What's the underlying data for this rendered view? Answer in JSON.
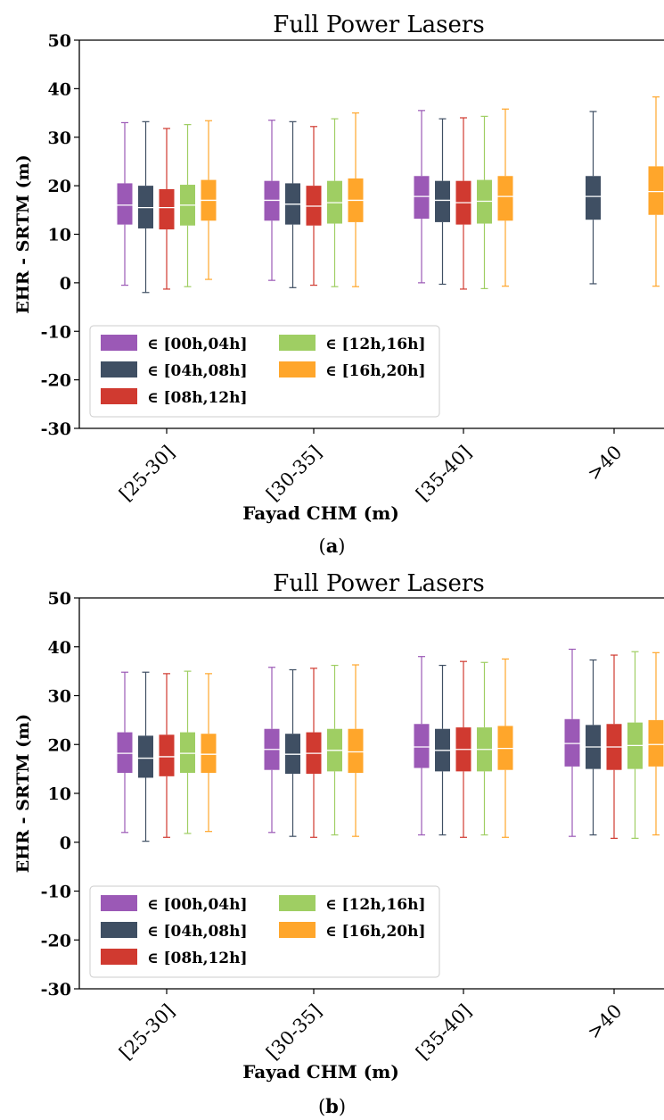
{
  "chart_data": [
    {
      "type": "boxplot",
      "panel": "a",
      "title": "Full Power Lasers",
      "xlabel": "Fayad CHM (m)",
      "ylabel": "EHR - SRTM (m)",
      "ylim": [
        -30,
        50
      ],
      "yticks": [
        -30,
        -20,
        -10,
        0,
        10,
        20,
        30,
        40,
        50
      ],
      "categories": [
        "[25-30]",
        "[30-35]",
        "[35-40]",
        ">40"
      ],
      "legend_position": "lower-left",
      "series": [
        {
          "name": "∈ [00h,04h]",
          "color": "#9b59b6",
          "boxes": [
            {
              "whislo": -0.5,
              "q1": 12,
              "med": 16,
              "q3": 20.5,
              "whishi": 33
            },
            {
              "whislo": 0.5,
              "q1": 12.8,
              "med": 17,
              "q3": 21,
              "whishi": 33.5
            },
            {
              "whislo": 0,
              "q1": 13.2,
              "med": 17.8,
              "q3": 22,
              "whishi": 35.5
            },
            null
          ]
        },
        {
          "name": "∈ [04h,08h]",
          "color": "#3f4f63",
          "boxes": [
            {
              "whislo": -2,
              "q1": 11.2,
              "med": 15.5,
              "q3": 20,
              "whishi": 33.2
            },
            {
              "whislo": -1,
              "q1": 12,
              "med": 16.2,
              "q3": 20.5,
              "whishi": 33.2
            },
            {
              "whislo": -0.3,
              "q1": 12.5,
              "med": 17,
              "q3": 21,
              "whishi": 33.8
            },
            {
              "whislo": -0.2,
              "q1": 13,
              "med": 17.8,
              "q3": 22,
              "whishi": 35.3
            }
          ]
        },
        {
          "name": "∈ [08h,12h]",
          "color": "#d03a30",
          "boxes": [
            {
              "whislo": -1.3,
              "q1": 11,
              "med": 15.5,
              "q3": 19.3,
              "whishi": 31.8
            },
            {
              "whislo": -0.5,
              "q1": 11.8,
              "med": 15.8,
              "q3": 20,
              "whishi": 32.2
            },
            {
              "whislo": -1.3,
              "q1": 12,
              "med": 16.5,
              "q3": 21,
              "whishi": 34
            },
            null
          ]
        },
        {
          "name": "∈ [12h,16h]",
          "color": "#9fce63",
          "boxes": [
            {
              "whislo": -0.8,
              "q1": 11.8,
              "med": 16,
              "q3": 20.2,
              "whishi": 32.6
            },
            {
              "whislo": -0.8,
              "q1": 12.2,
              "med": 16.5,
              "q3": 21,
              "whishi": 33.8
            },
            {
              "whislo": -1.2,
              "q1": 12.2,
              "med": 16.8,
              "q3": 21.2,
              "whishi": 34.3
            },
            null
          ]
        },
        {
          "name": "∈ [16h,20h]",
          "color": "#ffa62b",
          "boxes": [
            {
              "whislo": 0.7,
              "q1": 12.8,
              "med": 17,
              "q3": 21.2,
              "whishi": 33.4
            },
            {
              "whislo": -0.8,
              "q1": 12.5,
              "med": 17,
              "q3": 21.5,
              "whishi": 35
            },
            {
              "whislo": -0.7,
              "q1": 12.8,
              "med": 17.8,
              "q3": 22,
              "whishi": 35.8
            },
            {
              "whislo": -0.7,
              "q1": 14,
              "med": 18.8,
              "q3": 24,
              "whishi": 38.3
            }
          ]
        }
      ]
    },
    {
      "type": "boxplot",
      "panel": "b",
      "title": "Full Power Lasers",
      "xlabel": "Fayad CHM (m)",
      "ylabel": "EHR - SRTM (m)",
      "ylim": [
        -30,
        50
      ],
      "yticks": [
        -30,
        -20,
        -10,
        0,
        10,
        20,
        30,
        40,
        50
      ],
      "categories": [
        "[25-30]",
        "[30-35]",
        "[35-40]",
        ">40"
      ],
      "legend_position": "lower-left",
      "series": [
        {
          "name": "∈ [00h,04h]",
          "color": "#9b59b6",
          "boxes": [
            {
              "whislo": 2,
              "q1": 14.2,
              "med": 18.2,
              "q3": 22.5,
              "whishi": 34.8
            },
            {
              "whislo": 2,
              "q1": 14.8,
              "med": 19,
              "q3": 23.2,
              "whishi": 35.8
            },
            {
              "whislo": 1.5,
              "q1": 15.2,
              "med": 19.5,
              "q3": 24.2,
              "whishi": 38
            },
            {
              "whislo": 1.2,
              "q1": 15.5,
              "med": 20.2,
              "q3": 25.2,
              "whishi": 39.5
            }
          ]
        },
        {
          "name": "∈ [04h,08h]",
          "color": "#3f4f63",
          "boxes": [
            {
              "whislo": 0.2,
              "q1": 13.2,
              "med": 17.2,
              "q3": 21.8,
              "whishi": 34.8
            },
            {
              "whislo": 1.2,
              "q1": 14,
              "med": 18,
              "q3": 22.2,
              "whishi": 35.3
            },
            {
              "whislo": 1.5,
              "q1": 14.5,
              "med": 18.8,
              "q3": 23.2,
              "whishi": 36.2
            },
            {
              "whislo": 1.5,
              "q1": 15,
              "med": 19.5,
              "q3": 24,
              "whishi": 37.3
            }
          ]
        },
        {
          "name": "∈ [08h,12h]",
          "color": "#d03a30",
          "boxes": [
            {
              "whislo": 1,
              "q1": 13.5,
              "med": 17.5,
              "q3": 22,
              "whishi": 34.5
            },
            {
              "whislo": 1,
              "q1": 14,
              "med": 18.2,
              "q3": 22.5,
              "whishi": 35.6
            },
            {
              "whislo": 1,
              "q1": 14.5,
              "med": 19,
              "q3": 23.5,
              "whishi": 37
            },
            {
              "whislo": 0.8,
              "q1": 14.8,
              "med": 19.5,
              "q3": 24.2,
              "whishi": 38.3
            }
          ]
        },
        {
          "name": "∈ [12h,16h]",
          "color": "#9fce63",
          "boxes": [
            {
              "whislo": 1.8,
              "q1": 14.2,
              "med": 18.2,
              "q3": 22.5,
              "whishi": 35
            },
            {
              "whislo": 1.5,
              "q1": 14.5,
              "med": 18.8,
              "q3": 23.2,
              "whishi": 36.2
            },
            {
              "whislo": 1.5,
              "q1": 14.5,
              "med": 19,
              "q3": 23.5,
              "whishi": 36.8
            },
            {
              "whislo": 0.8,
              "q1": 15,
              "med": 19.8,
              "q3": 24.5,
              "whishi": 39
            }
          ]
        },
        {
          "name": "∈ [16h,20h]",
          "color": "#ffa62b",
          "boxes": [
            {
              "whislo": 2.2,
              "q1": 14.2,
              "med": 18,
              "q3": 22.2,
              "whishi": 34.5
            },
            {
              "whislo": 1.2,
              "q1": 14.2,
              "med": 18.5,
              "q3": 23.2,
              "whishi": 36.3
            },
            {
              "whislo": 1,
              "q1": 14.8,
              "med": 19.2,
              "q3": 23.8,
              "whishi": 37.5
            },
            {
              "whislo": 1.5,
              "q1": 15.5,
              "med": 20,
              "q3": 25,
              "whishi": 38.8
            }
          ]
        }
      ]
    }
  ],
  "captions": {
    "a": {
      "open": "(",
      "letter": "a",
      "close": ")"
    },
    "b": {
      "open": "(",
      "letter": "b",
      "close": ")"
    }
  }
}
